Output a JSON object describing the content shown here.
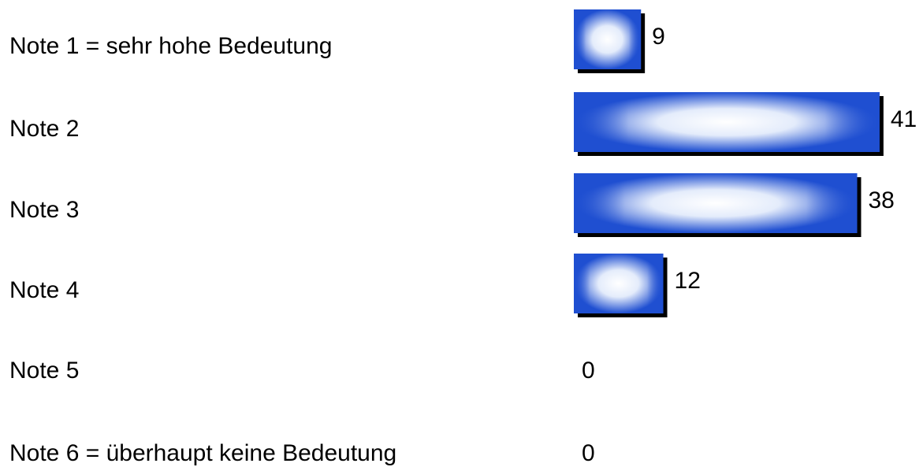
{
  "chart_data": {
    "type": "bar",
    "orientation": "horizontal",
    "categories": [
      "Note 1 = sehr hohe Bedeutung",
      "Note 2",
      "Note 3",
      "Note 4",
      "Note 5",
      "Note 6 = überhaupt keine Bedeutung"
    ],
    "values": [
      9,
      41,
      38,
      12,
      0,
      0
    ],
    "color": "#1f4fd1"
  }
}
